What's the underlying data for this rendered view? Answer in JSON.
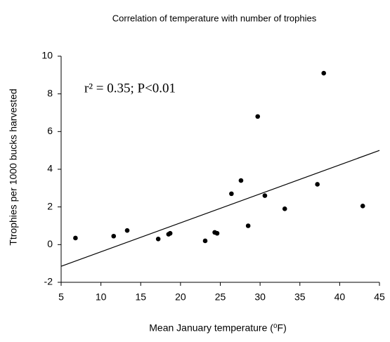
{
  "chart_data": {
    "type": "scatter",
    "title": "Correlation of temperature with number of trophies",
    "x_label": "Mean January temperature (⁰F)",
    "y_label": "Ttrophies per 1000 bucks harvested",
    "annotation": "r² = 0.35; P<0.01",
    "color": "#000000",
    "x": [
      6.8,
      11.6,
      13.3,
      17.2,
      18.5,
      18.7,
      23.1,
      24.3,
      24.6,
      26.4,
      27.6,
      28.5,
      29.7,
      30.6,
      33.1,
      37.2,
      38.0,
      42.9
    ],
    "values": [
      0.35,
      0.45,
      0.75,
      0.3,
      0.55,
      0.6,
      0.2,
      0.65,
      0.6,
      2.7,
      3.4,
      1.0,
      6.8,
      2.6,
      1.9,
      3.2,
      9.1,
      2.05
    ],
    "fit_line": {
      "x": [
        5,
        45
      ],
      "y": [
        -1.15,
        5.0
      ]
    },
    "xlim": [
      5,
      45
    ],
    "ylim": [
      -2,
      10
    ],
    "xticks": [
      5,
      10,
      15,
      20,
      25,
      30,
      35,
      40,
      45
    ],
    "yticks": [
      -2,
      0,
      2,
      4,
      6,
      8,
      10
    ],
    "grid": false
  }
}
